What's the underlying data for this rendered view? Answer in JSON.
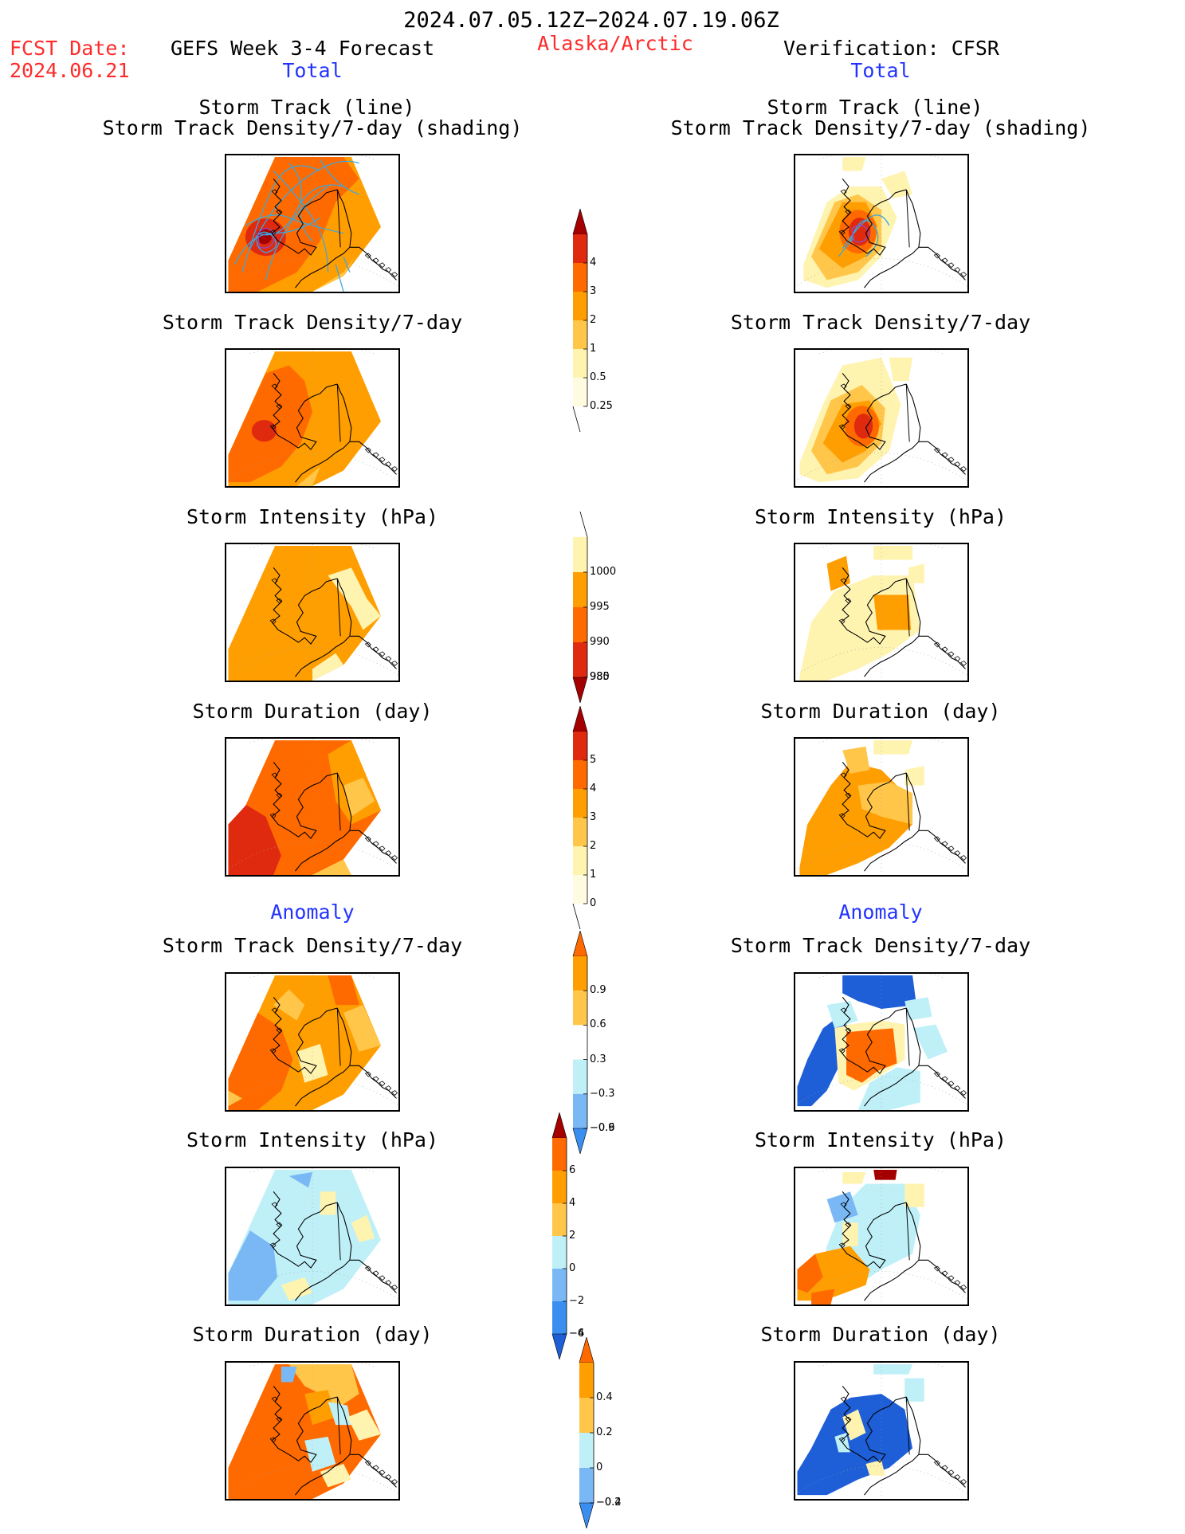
{
  "header": {
    "period": "2024.07.05.12Z−2024.07.19.06Z",
    "fcst_label": "FCST Date:",
    "fcst_date": "2024.06.21",
    "left_title": "GEFS Week 3-4 Forecast",
    "region": "Alaska/Arctic",
    "right_title": "Verification: CFSR",
    "left_sub": "Total",
    "right_sub": "Total"
  },
  "sections": {
    "anomaly_left": "Anomaly",
    "anomaly_right": "Anomaly"
  },
  "titles": {
    "track_line": "Storm Track (line)",
    "track_shading": "Storm Track Density/7-day (shading)",
    "density": "Storm Track Density/7-day",
    "intensity": "Storm Intensity (hPa)",
    "duration": "Storm Duration (day)"
  },
  "colors": {
    "dark_red": "#a50000",
    "red": "#e02a10",
    "orange_red": "#ff6a00",
    "orange": "#ff9e00",
    "light_orange": "#ffc64a",
    "pale_yellow": "#fff3b0",
    "pale_blue": "#bff0f8",
    "light_blue": "#7ab8f5",
    "blue": "#3a8ef0",
    "dark_blue": "#1e5fd8",
    "track": "#3aa8e0"
  },
  "colorbars": {
    "density": {
      "labels": [
        "4",
        "3",
        "2",
        "1",
        "0.5",
        "0.25"
      ]
    },
    "intensity": {
      "labels": [
        "1000",
        "995",
        "990",
        "985",
        "980"
      ]
    },
    "duration": {
      "labels": [
        "5",
        "4",
        "3",
        "2",
        "1",
        "0"
      ]
    },
    "anom_density": {
      "labels": [
        "0.9",
        "0.6",
        "0.3",
        "−0.3",
        "−0.6",
        "−0.9"
      ]
    },
    "anom_intensity": {
      "labels": [
        "6",
        "4",
        "2",
        "0",
        "−2",
        "−4",
        "−6"
      ]
    },
    "anom_duration": {
      "labels": [
        "0.4",
        "0.2",
        "0",
        "−0.2",
        "−0.4"
      ]
    }
  }
}
